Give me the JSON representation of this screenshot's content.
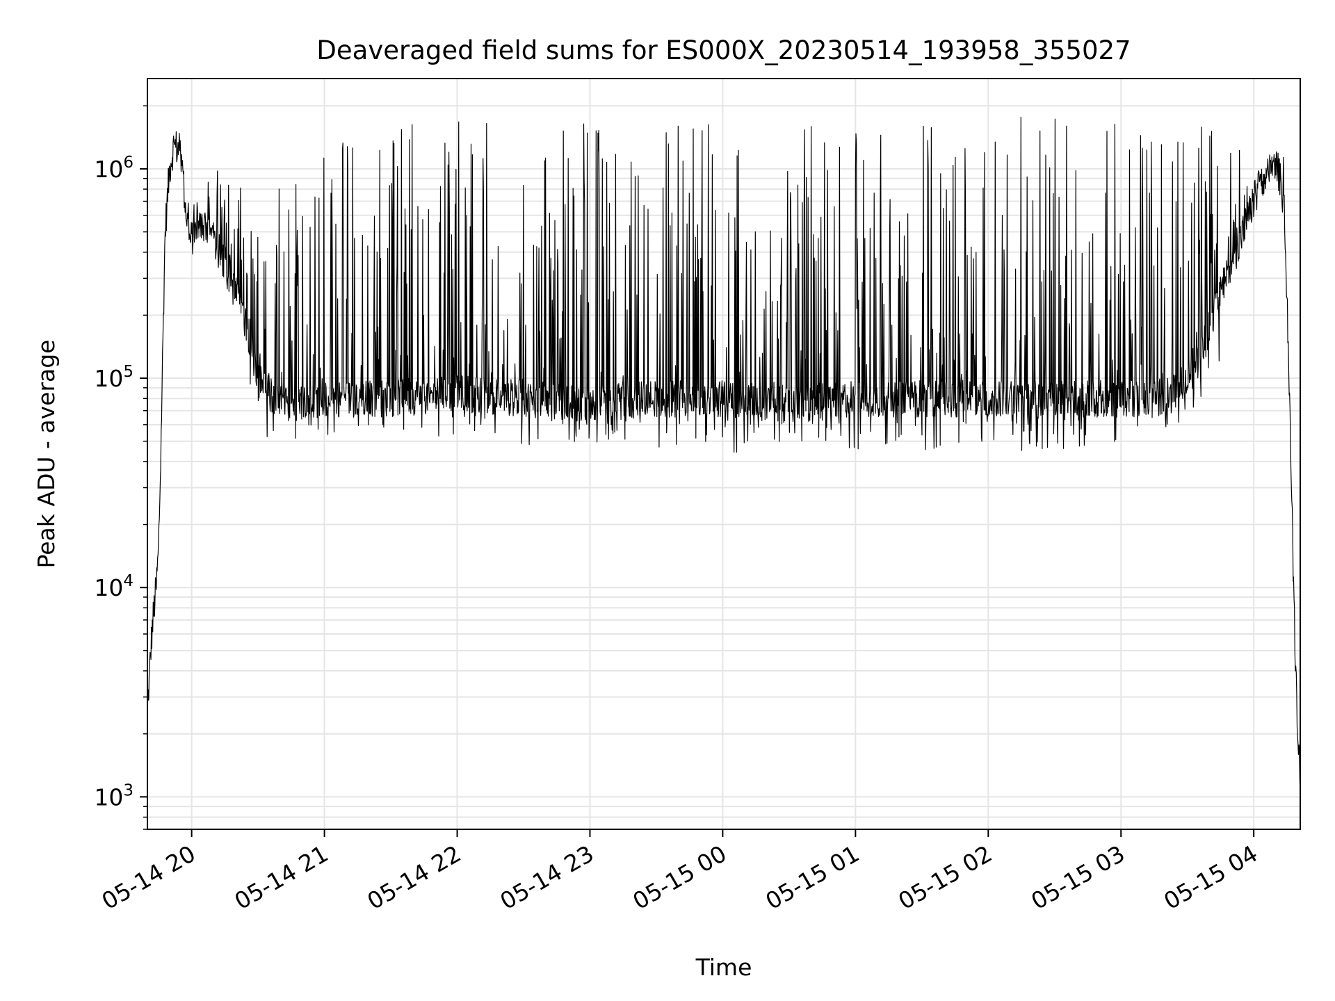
{
  "chart_data": {
    "type": "line",
    "title": "Deaveraged field sums for ES000X_20230514_193958_355027",
    "xlabel": "Time",
    "ylabel": "Peak ADU - average",
    "y_scale": "log",
    "ylim": [
      700,
      2700000
    ],
    "xlim": [
      "2023-05-14T19:40",
      "2023-05-15T04:21"
    ],
    "grid": true,
    "line_color": "#000000",
    "grid_color": "#e5e5e5",
    "x_ticks": [
      {
        "time": "2023-05-14T20:00",
        "label": "05-14 20"
      },
      {
        "time": "2023-05-14T21:00",
        "label": "05-14 21"
      },
      {
        "time": "2023-05-14T22:00",
        "label": "05-14 22"
      },
      {
        "time": "2023-05-14T23:00",
        "label": "05-14 23"
      },
      {
        "time": "2023-05-15T00:00",
        "label": "05-15 00"
      },
      {
        "time": "2023-05-15T01:00",
        "label": "05-15 01"
      },
      {
        "time": "2023-05-15T02:00",
        "label": "05-15 02"
      },
      {
        "time": "2023-05-15T03:00",
        "label": "05-15 03"
      },
      {
        "time": "2023-05-15T04:00",
        "label": "05-15 04"
      }
    ],
    "y_ticks": [
      {
        "value": 1000,
        "base": "10",
        "exp": "3"
      },
      {
        "value": 10000,
        "base": "10",
        "exp": "4"
      },
      {
        "value": 100000,
        "base": "10",
        "exp": "5"
      },
      {
        "value": 1000000,
        "base": "10",
        "exp": "6"
      }
    ],
    "series": [
      {
        "x": [
          "2023-05-14T19:40",
          "2023-05-14T19:41",
          "2023-05-14T19:42",
          "2023-05-14T19:43",
          "2023-05-14T19:44",
          "2023-05-14T19:45",
          "2023-05-14T19:46",
          "2023-05-14T19:47",
          "2023-05-14T19:48",
          "2023-05-14T19:50",
          "2023-05-14T19:52",
          "2023-05-14T19:55",
          "2023-05-14T19:57",
          "2023-05-14T19:59",
          "2023-05-14T20:02",
          "2023-05-14T20:06",
          "2023-05-14T20:10",
          "2023-05-14T20:15",
          "2023-05-14T20:20",
          "2023-05-14T20:25",
          "2023-05-14T20:30",
          "2023-05-14T20:40",
          "2023-05-14T21:00",
          "2023-05-14T21:30",
          "2023-05-14T22:00",
          "2023-05-14T22:30",
          "2023-05-14T23:00",
          "2023-05-14T23:30",
          "2023-05-15T00:00",
          "2023-05-15T00:30",
          "2023-05-15T01:00",
          "2023-05-15T01:30",
          "2023-05-15T02:00",
          "2023-05-15T02:30",
          "2023-05-15T03:00",
          "2023-05-15T03:15",
          "2023-05-15T03:25",
          "2023-05-15T03:35",
          "2023-05-15T03:45",
          "2023-05-15T03:55",
          "2023-05-15T04:02",
          "2023-05-15T04:07",
          "2023-05-15T04:10",
          "2023-05-15T04:12",
          "2023-05-15T04:14",
          "2023-05-15T04:16",
          "2023-05-15T04:18",
          "2023-05-15T04:19",
          "2023-05-15T04:20",
          "2023-05-15T04:21"
        ],
        "y": [
          2500,
          4000,
          6000,
          8000,
          10000,
          15000,
          40000,
          150000,
          500000,
          1000000,
          1300000,
          1200000,
          700000,
          450000,
          500000,
          550000,
          450000,
          350000,
          250000,
          180000,
          100000,
          75000,
          80000,
          80000,
          85000,
          80000,
          75000,
          80000,
          80000,
          75000,
          80000,
          80000,
          80000,
          80000,
          80000,
          80000,
          85000,
          120000,
          250000,
          500000,
          800000,
          950000,
          1000000,
          900000,
          600000,
          100000,
          10000,
          4000,
          2000,
          1200
        ],
        "spike_max": [
          null,
          null,
          null,
          null,
          null,
          null,
          null,
          null,
          null,
          null,
          1400000,
          1350000,
          900000,
          700000,
          700000,
          800000,
          1000000,
          950000,
          900000,
          800000,
          600000,
          1000000,
          1550000,
          1600000,
          1700000,
          1750000,
          1700000,
          1650000,
          1650000,
          1650000,
          1700000,
          1750000,
          1800000,
          1750000,
          1700000,
          1700000,
          1650000,
          1600000,
          1550000,
          1300000,
          1100000,
          1200000,
          1250000,
          1200000,
          null,
          null,
          null,
          null,
          null,
          null
        ],
        "spike_min": [
          null,
          null,
          null,
          null,
          null,
          null,
          null,
          null,
          null,
          null,
          null,
          null,
          null,
          null,
          null,
          null,
          null,
          null,
          null,
          null,
          48000,
          50000,
          50000,
          55000,
          52000,
          48000,
          50000,
          45000,
          42000,
          48000,
          45000,
          45000,
          45000,
          45000,
          48000,
          55000,
          60000,
          65000,
          null,
          null,
          null,
          null,
          null,
          null,
          null,
          null,
          null,
          null,
          null,
          null
        ]
      }
    ]
  }
}
